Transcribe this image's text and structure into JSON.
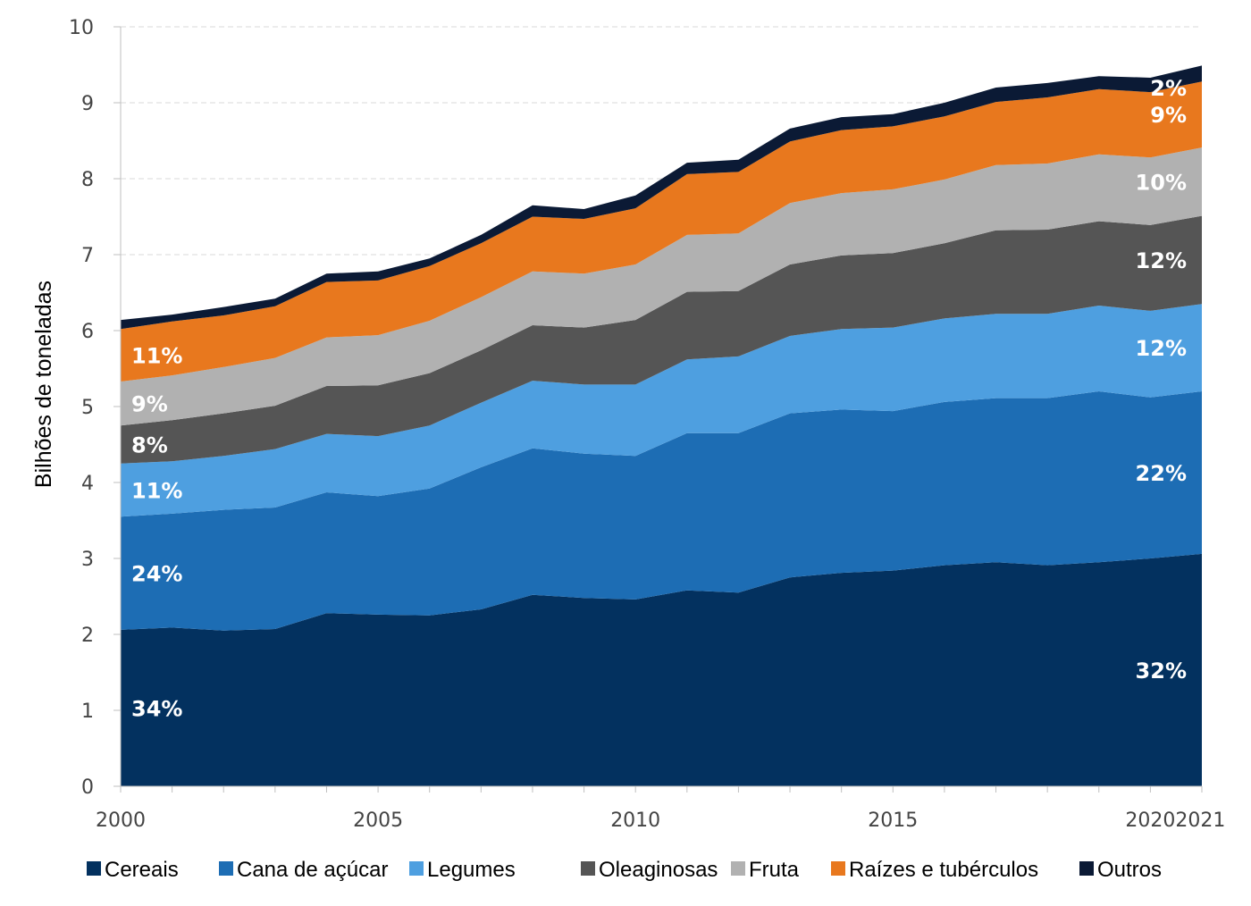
{
  "chart_data": {
    "type": "area",
    "stacked": true,
    "title": "",
    "xlabel": "",
    "ylabel": "Bilhões de toneladas",
    "ylim": [
      0,
      10
    ],
    "yticks": [
      0,
      1,
      2,
      3,
      4,
      5,
      6,
      7,
      8,
      9,
      10
    ],
    "x": [
      2000,
      2001,
      2002,
      2003,
      2004,
      2005,
      2006,
      2007,
      2008,
      2009,
      2010,
      2011,
      2012,
      2013,
      2014,
      2015,
      2016,
      2017,
      2018,
      2019,
      2020,
      2021
    ],
    "xtick_labels": [
      "2000",
      "2005",
      "2010",
      "2015",
      "2020",
      "2021"
    ],
    "grid": "horizontal dashed",
    "legend_position": "bottom",
    "series": [
      {
        "name": "Cereais",
        "color": "#03315f",
        "values": [
          2.06,
          2.09,
          2.05,
          2.07,
          2.28,
          2.26,
          2.25,
          2.33,
          2.52,
          2.48,
          2.46,
          2.58,
          2.55,
          2.75,
          2.81,
          2.84,
          2.91,
          2.95,
          2.91,
          2.95,
          3.0,
          3.06
        ],
        "label_start": "34%",
        "label_end": "32%"
      },
      {
        "name": "Cana de açúcar",
        "color": "#1d6db4",
        "values": [
          1.49,
          1.5,
          1.59,
          1.6,
          1.59,
          1.56,
          1.67,
          1.87,
          1.93,
          1.9,
          1.89,
          2.07,
          2.1,
          2.16,
          2.15,
          2.1,
          2.15,
          2.16,
          2.2,
          2.25,
          2.12,
          2.14
        ],
        "label_start": "24%",
        "label_end": "22%"
      },
      {
        "name": "Legumes",
        "color": "#4e9fe0",
        "values": [
          0.7,
          0.69,
          0.71,
          0.77,
          0.77,
          0.79,
          0.83,
          0.85,
          0.89,
          0.91,
          0.94,
          0.97,
          1.01,
          1.02,
          1.06,
          1.1,
          1.1,
          1.11,
          1.11,
          1.13,
          1.14,
          1.15
        ],
        "label_start": "11%",
        "label_end": "12%"
      },
      {
        "name": "Oleaginosas",
        "color": "#555555",
        "values": [
          0.5,
          0.54,
          0.56,
          0.57,
          0.63,
          0.67,
          0.69,
          0.69,
          0.73,
          0.75,
          0.85,
          0.89,
          0.86,
          0.94,
          0.97,
          0.98,
          0.99,
          1.1,
          1.11,
          1.11,
          1.13,
          1.16
        ],
        "label_start": "8%",
        "label_end": "12%"
      },
      {
        "name": "Fruta",
        "color": "#b1b1b1",
        "values": [
          0.58,
          0.59,
          0.61,
          0.63,
          0.64,
          0.66,
          0.69,
          0.7,
          0.71,
          0.71,
          0.73,
          0.75,
          0.76,
          0.81,
          0.82,
          0.84,
          0.84,
          0.86,
          0.87,
          0.88,
          0.89,
          0.9
        ],
        "label_start": "9%",
        "label_end": "10%"
      },
      {
        "name": "Raízes e tubérculos",
        "color": "#e8781e",
        "values": [
          0.69,
          0.71,
          0.68,
          0.68,
          0.73,
          0.72,
          0.72,
          0.71,
          0.72,
          0.72,
          0.74,
          0.8,
          0.81,
          0.81,
          0.83,
          0.83,
          0.83,
          0.83,
          0.87,
          0.86,
          0.86,
          0.87
        ],
        "label_start": "11%",
        "label_end": "9%"
      },
      {
        "name": "Outros",
        "color": "#0b1a35",
        "values": [
          0.12,
          0.09,
          0.11,
          0.1,
          0.11,
          0.12,
          0.1,
          0.11,
          0.15,
          0.13,
          0.17,
          0.15,
          0.16,
          0.17,
          0.17,
          0.16,
          0.18,
          0.19,
          0.19,
          0.17,
          0.19,
          0.21
        ],
        "label_start": null,
        "label_end": "2%"
      }
    ]
  }
}
